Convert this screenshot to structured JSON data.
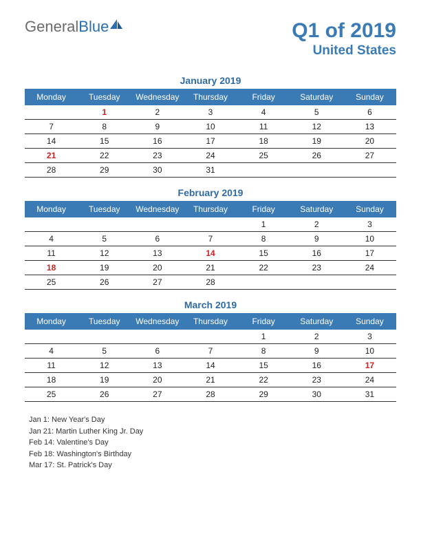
{
  "logo": {
    "general": "General",
    "blue": "Blue"
  },
  "title": {
    "main": "Q1 of 2019",
    "sub": "United States"
  },
  "colors": {
    "header_bg": "#3a7ab5",
    "header_text": "#ffffff",
    "title_color": "#3a7ab5",
    "holiday_color": "#cc2222",
    "row_border": "#333333"
  },
  "day_headers": [
    "Monday",
    "Tuesday",
    "Wednesday",
    "Thursday",
    "Friday",
    "Saturday",
    "Sunday"
  ],
  "months": [
    {
      "title": "January 2019",
      "weeks": [
        [
          "",
          "1",
          "2",
          "3",
          "4",
          "5",
          "6"
        ],
        [
          "7",
          "8",
          "9",
          "10",
          "11",
          "12",
          "13"
        ],
        [
          "14",
          "15",
          "16",
          "17",
          "18",
          "19",
          "20"
        ],
        [
          "21",
          "22",
          "23",
          "24",
          "25",
          "26",
          "27"
        ],
        [
          "28",
          "29",
          "30",
          "31",
          "",
          "",
          ""
        ]
      ],
      "holidays": [
        [
          0,
          1
        ],
        [
          3,
          0
        ]
      ]
    },
    {
      "title": "February 2019",
      "weeks": [
        [
          "",
          "",
          "",
          "",
          "1",
          "2",
          "3"
        ],
        [
          "4",
          "5",
          "6",
          "7",
          "8",
          "9",
          "10"
        ],
        [
          "11",
          "12",
          "13",
          "14",
          "15",
          "16",
          "17"
        ],
        [
          "18",
          "19",
          "20",
          "21",
          "22",
          "23",
          "24"
        ],
        [
          "25",
          "26",
          "27",
          "28",
          "",
          "",
          ""
        ]
      ],
      "holidays": [
        [
          2,
          3
        ],
        [
          3,
          0
        ]
      ]
    },
    {
      "title": "March 2019",
      "weeks": [
        [
          "",
          "",
          "",
          "",
          "1",
          "2",
          "3"
        ],
        [
          "4",
          "5",
          "6",
          "7",
          "8",
          "9",
          "10"
        ],
        [
          "11",
          "12",
          "13",
          "14",
          "15",
          "16",
          "17"
        ],
        [
          "18",
          "19",
          "20",
          "21",
          "22",
          "23",
          "24"
        ],
        [
          "25",
          "26",
          "27",
          "28",
          "29",
          "30",
          "31"
        ]
      ],
      "holidays": [
        [
          2,
          6
        ]
      ]
    }
  ],
  "holiday_list": [
    "Jan 1: New Year's Day",
    "Jan 21: Martin Luther King Jr. Day",
    "Feb 14: Valentine's Day",
    "Feb 18: Washington's Birthday",
    "Mar 17: St. Patrick's Day"
  ]
}
